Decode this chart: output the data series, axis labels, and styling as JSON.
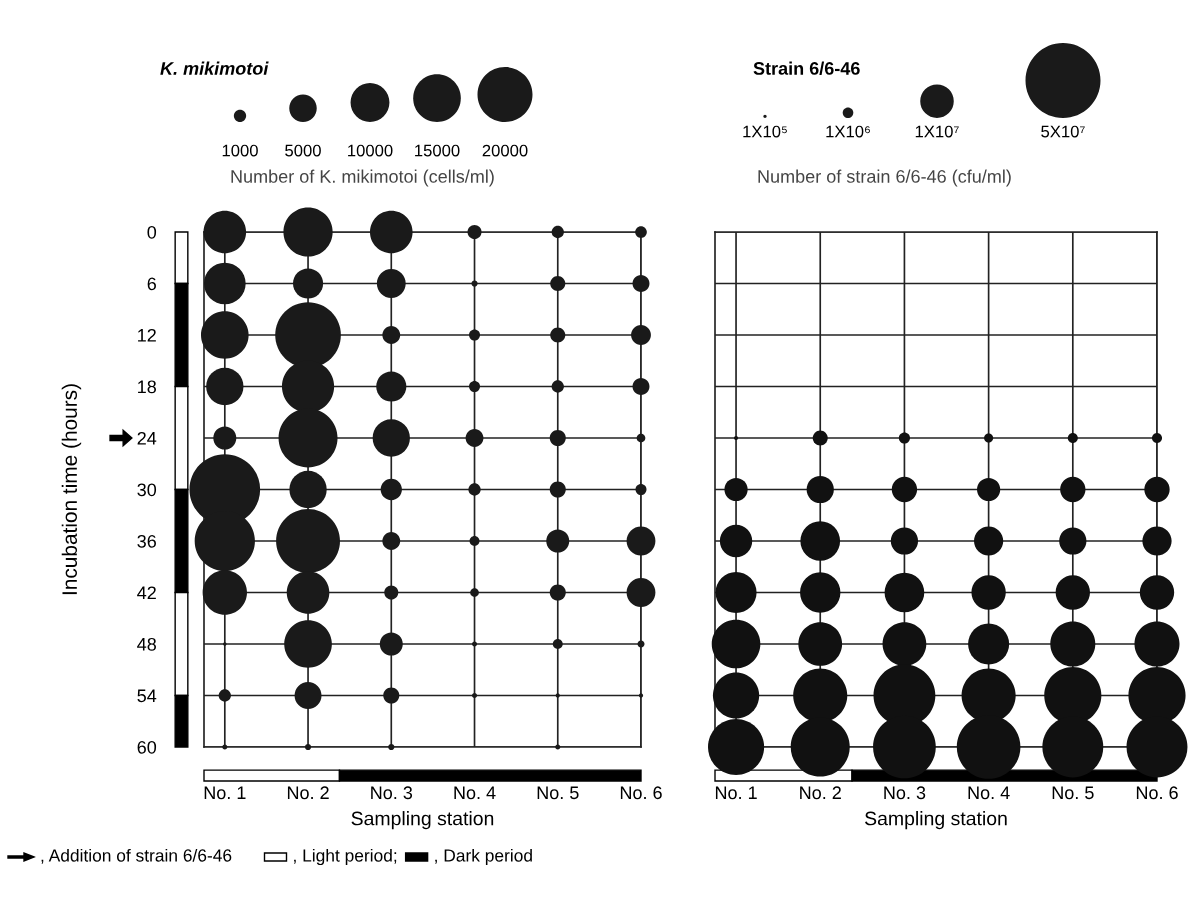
{
  "chart_data": [
    {
      "type": "bubble",
      "legend_title": "K. mikimotoi",
      "ylabel": "Incubation time (hours)",
      "xlabel": "Sampling station",
      "categories": [
        "No. 1",
        "No. 2",
        "No. 3",
        "No. 4",
        "No. 5",
        "No. 6"
      ],
      "ylim": [
        60,
        0
      ],
      "yticks": [
        0,
        6,
        12,
        18,
        24,
        30,
        36,
        42,
        48,
        54,
        60
      ],
      "grid": true,
      "size_legend": [
        1000,
        5000,
        10000,
        15000,
        20000
      ],
      "annotations": [
        "Number of K. mikimotoi (cells/ml)",
        ", Addition of strain 6/6-46",
        ", Light period;",
        ", Dark period"
      ],
      "series": [
        {
          "color": "#1a1a1a",
          "values": [
            0,
            0,
            0,
            0,
            0,
            0
          ],
          "sizes": [
            12000,
            16000,
            12000,
            1300,
            1000,
            900
          ]
        },
        {
          "color": "#1a1a1a",
          "values": [
            6,
            6,
            6,
            6,
            6,
            6
          ],
          "sizes": [
            11500,
            6000,
            5500,
            250,
            1500,
            1900
          ]
        },
        {
          "color": "#1a1a1a",
          "values": [
            12,
            12,
            12,
            12,
            12,
            12
          ],
          "sizes": [
            15000,
            28500,
            2100,
            800,
            1500,
            2600
          ]
        },
        {
          "color": "#1a1a1a",
          "values": [
            18,
            18,
            18,
            18,
            18,
            18
          ],
          "sizes": [
            9200,
            18000,
            6000,
            800,
            1000,
            1900
          ]
        },
        {
          "color": "#1a1a1a",
          "values": [
            24,
            24,
            24,
            24,
            24,
            24
          ],
          "sizes": [
            3500,
            23000,
            9200,
            2100,
            1700,
            500
          ]
        },
        {
          "color": "#1a1a1a",
          "values": [
            30,
            30,
            30,
            30,
            30,
            30
          ],
          "sizes": [
            33000,
            9200,
            3000,
            1000,
            1700,
            800
          ]
        },
        {
          "color": "#1a1a1a",
          "values": [
            36,
            36,
            36,
            36,
            36,
            36
          ],
          "sizes": [
            24000,
            27000,
            2100,
            650,
            3500,
            5500
          ]
        },
        {
          "color": "#1a1a1a",
          "values": [
            42,
            42,
            42,
            42,
            42,
            42
          ],
          "sizes": [
            13000,
            12000,
            1300,
            500,
            1700,
            5500
          ]
        },
        {
          "color": "#1a1a1a",
          "values": [
            48,
            48,
            48,
            48,
            48,
            48
          ],
          "sizes": [
            80,
            15000,
            3500,
            170,
            650,
            330
          ]
        },
        {
          "color": "#1a1a1a",
          "values": [
            54,
            54,
            54,
            54,
            54,
            54
          ],
          "sizes": [
            1000,
            4800,
            1700,
            170,
            120,
            120
          ]
        },
        {
          "color": "#1a1a1a",
          "values": [
            60,
            60,
            60,
            null,
            60,
            null
          ],
          "sizes": [
            170,
            250,
            250,
            null,
            170,
            null
          ]
        }
      ]
    },
    {
      "type": "bubble",
      "legend_title": "Strain 6/6-46",
      "xlabel": "Sampling station",
      "categories": [
        "No. 1",
        "No. 2",
        "No. 3",
        "No. 4",
        "No. 5",
        "No. 6"
      ],
      "ylim": [
        60,
        0
      ],
      "yticks": [
        0,
        6,
        12,
        18,
        24,
        30,
        36,
        42,
        48,
        54,
        60
      ],
      "grid": true,
      "tick_labels": "x",
      "size_legend": [
        {
          "value": 100000,
          "label": "1X10⁵"
        },
        {
          "value": 1000000,
          "label": "1X10⁶"
        },
        {
          "value": 10000000,
          "label": "1X10⁷"
        },
        {
          "value": 50000000,
          "label": "5X10⁷"
        }
      ],
      "annotations": [
        "Number of strain 6/6-46 (cfu/ml)"
      ],
      "series": [
        {
          "color": "#111111",
          "values": [
            24,
            24,
            24,
            24,
            24,
            24
          ],
          "sizes": [
            150000,
            2000000,
            1100000,
            730000,
            900000,
            900000
          ]
        },
        {
          "color": "#111111",
          "values": [
            30,
            30,
            30,
            30,
            30,
            30
          ],
          "sizes": [
            4800000,
            6600000,
            5700000,
            4800000,
            5700000,
            5700000
          ]
        },
        {
          "color": "#111111",
          "values": [
            36,
            36,
            36,
            36,
            36,
            36
          ],
          "sizes": [
            9300000,
            14000000,
            6600000,
            7600000,
            6600000,
            7600000
          ]
        },
        {
          "color": "#111111",
          "values": [
            42,
            42,
            42,
            42,
            42,
            42
          ],
          "sizes": [
            15000000,
            14500000,
            14000000,
            10500000,
            10500000,
            10500000
          ]
        },
        {
          "color": "#111111",
          "values": [
            48,
            48,
            48,
            48,
            48,
            48
          ],
          "sizes": [
            21000000,
            17000000,
            17000000,
            15000000,
            18000000,
            18000000
          ]
        },
        {
          "color": "#111111",
          "values": [
            54,
            54,
            54,
            54,
            54,
            54
          ],
          "sizes": [
            19000000,
            26000000,
            34000000,
            26000000,
            29000000,
            29000000
          ]
        },
        {
          "color": "#111111",
          "values": [
            60,
            60,
            60,
            60,
            60,
            60
          ],
          "sizes": [
            28000000,
            31000000,
            35000000,
            36000000,
            33000000,
            33000000
          ]
        }
      ]
    }
  ]
}
